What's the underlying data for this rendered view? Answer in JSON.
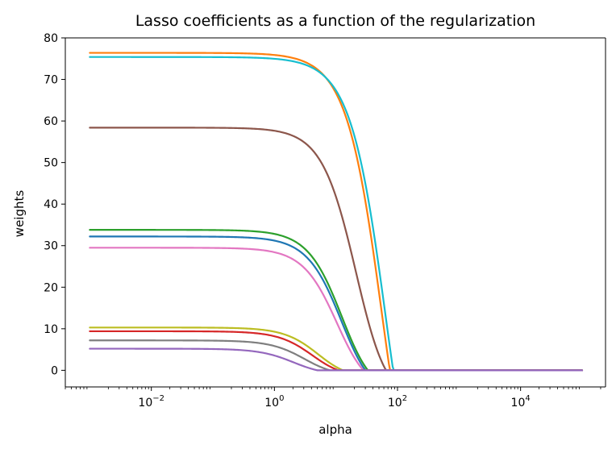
{
  "chart_data": {
    "type": "line",
    "title": "Lasso coefficients as a function of the regularization",
    "xlabel": "alpha",
    "ylabel": "weights",
    "xscale": "log",
    "xlim": [
      0.0004,
      240000
    ],
    "ylim": [
      -4,
      80
    ],
    "yticks": [
      0,
      10,
      20,
      30,
      40,
      50,
      60,
      70,
      80
    ],
    "xticks": [
      {
        "value": 0.01,
        "base": "10",
        "exp": "−2"
      },
      {
        "value": 1,
        "base": "10",
        "exp": "0"
      },
      {
        "value": 100,
        "base": "10",
        "exp": "2"
      },
      {
        "value": 10000,
        "base": "10",
        "exp": "4"
      }
    ],
    "grid": false,
    "series": [
      {
        "color": "#ff7f0e",
        "start": 76.4,
        "knee": 30,
        "zero": 75,
        "x": [
          0.001,
          0.1,
          1,
          10,
          30,
          75,
          100000
        ],
        "values": [
          76.4,
          76.2,
          75,
          66,
          45,
          0,
          0
        ]
      },
      {
        "color": "#17becf",
        "start": 75.4,
        "knee": 35,
        "zero": 85,
        "x": [
          0.001,
          0.1,
          1,
          10,
          30,
          85,
          100000
        ],
        "values": [
          75.4,
          75.2,
          74.2,
          66,
          48,
          0,
          0
        ]
      },
      {
        "color": "#8c564b",
        "start": 58.4,
        "knee": 10,
        "zero": 65,
        "x": [
          0.001,
          0.1,
          1,
          10,
          30,
          65,
          100000
        ],
        "values": [
          58.4,
          58.2,
          57,
          50,
          30,
          0,
          0
        ]
      },
      {
        "color": "#2ca02c",
        "start": 33.8,
        "knee": 6,
        "zero": 33,
        "x": [
          0.001,
          0.1,
          1,
          10,
          20,
          33,
          100000
        ],
        "values": [
          33.8,
          33.7,
          33,
          26,
          15,
          0,
          0
        ]
      },
      {
        "color": "#1f77b4",
        "start": 32.2,
        "knee": 6,
        "zero": 30,
        "x": [
          0.001,
          0.1,
          1,
          10,
          20,
          30,
          100000
        ],
        "values": [
          32.2,
          32.1,
          31.4,
          24.5,
          14,
          0,
          0
        ]
      },
      {
        "color": "#e377c2",
        "start": 29.5,
        "knee": 5,
        "zero": 28,
        "x": [
          0.001,
          0.1,
          1,
          10,
          20,
          28,
          100000
        ],
        "values": [
          29.5,
          29.4,
          28.7,
          22,
          11,
          0,
          0
        ]
      },
      {
        "color": "#bcbd22",
        "start": 10.3,
        "knee": 2.5,
        "zero": 13,
        "x": [
          0.001,
          0.1,
          1,
          5,
          10,
          13,
          100000
        ],
        "values": [
          10.3,
          10.2,
          9.9,
          8,
          3,
          0,
          0
        ]
      },
      {
        "color": "#d62728",
        "start": 9.4,
        "knee": 2,
        "zero": 11,
        "x": [
          0.001,
          0.1,
          1,
          5,
          9,
          11,
          100000
        ],
        "values": [
          9.4,
          9.3,
          9,
          7,
          2.5,
          0,
          0
        ]
      },
      {
        "color": "#7f7f7f",
        "start": 7.2,
        "knee": 1.5,
        "zero": 8,
        "x": [
          0.001,
          0.1,
          1,
          4,
          6,
          8,
          100000
        ],
        "values": [
          7.2,
          7.1,
          6.7,
          4.5,
          2,
          0,
          0
        ]
      },
      {
        "color": "#9467bd",
        "start": 5.2,
        "knee": 1,
        "zero": 5,
        "x": [
          0.001,
          0.1,
          1,
          3,
          4,
          5,
          100000
        ],
        "values": [
          5.2,
          5.1,
          4.6,
          2.8,
          1.2,
          0,
          0
        ]
      }
    ]
  }
}
